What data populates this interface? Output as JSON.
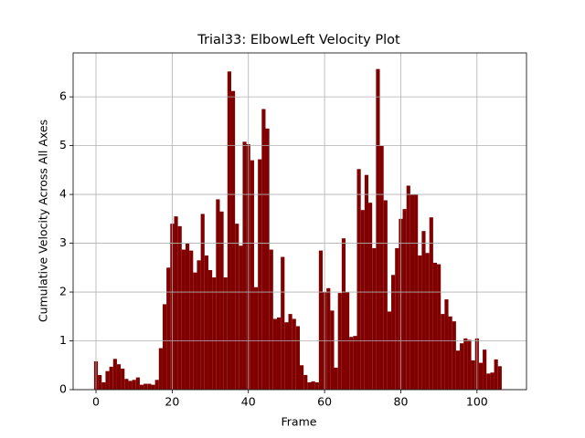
{
  "chart_data": {
    "type": "bar",
    "title": "Trial33: ElbowLeft Velocity Plot",
    "x_label": "Frame",
    "y_label": "Cumulative Velocity Across All Axes",
    "x": [
      0,
      1,
      2,
      3,
      4,
      5,
      6,
      7,
      8,
      9,
      10,
      11,
      12,
      13,
      14,
      15,
      16,
      17,
      18,
      19,
      20,
      21,
      22,
      23,
      24,
      25,
      26,
      27,
      28,
      29,
      30,
      31,
      32,
      33,
      34,
      35,
      36,
      37,
      38,
      39,
      40,
      41,
      42,
      43,
      44,
      45,
      46,
      47,
      48,
      49,
      50,
      51,
      52,
      53,
      54,
      55,
      56,
      57,
      58,
      59,
      60,
      61,
      62,
      63,
      64,
      65,
      66,
      67,
      68,
      69,
      70,
      71,
      72,
      73,
      74,
      75,
      76,
      77,
      78,
      79,
      80,
      81,
      82,
      83,
      84,
      85,
      86,
      87,
      88,
      89,
      90,
      91,
      92,
      93,
      94,
      95,
      96,
      97,
      98,
      99,
      100,
      101,
      102,
      103,
      104,
      105,
      106
    ],
    "values": [
      0.58,
      0.3,
      0.15,
      0.38,
      0.47,
      0.63,
      0.52,
      0.43,
      0.22,
      0.18,
      0.2,
      0.25,
      0.1,
      0.12,
      0.12,
      0.1,
      0.2,
      0.85,
      1.75,
      2.5,
      3.4,
      3.55,
      3.35,
      2.87,
      3.0,
      2.85,
      2.4,
      2.65,
      3.6,
      2.75,
      2.45,
      2.3,
      3.9,
      3.65,
      2.3,
      6.52,
      6.12,
      3.4,
      2.95,
      5.08,
      5.03,
      4.7,
      2.1,
      4.72,
      5.75,
      5.35,
      2.87,
      1.45,
      1.48,
      2.72,
      1.38,
      1.55,
      1.45,
      1.3,
      0.5,
      0.3,
      0.15,
      0.17,
      0.15,
      2.85,
      2.0,
      2.08,
      1.62,
      0.45,
      1.98,
      3.1,
      2.0,
      1.08,
      1.1,
      4.52,
      3.68,
      4.4,
      3.83,
      2.9,
      6.57,
      5.0,
      3.88,
      1.6,
      2.35,
      2.9,
      3.5,
      3.7,
      4.18,
      4.0,
      4.0,
      2.75,
      3.25,
      2.8,
      3.53,
      2.6,
      2.57,
      1.55,
      1.85,
      1.5,
      1.4,
      0.8,
      0.95,
      1.05,
      1.02,
      0.6,
      1.05,
      0.55,
      0.82,
      0.33,
      0.35,
      0.62,
      0.48
    ],
    "color": "#800000",
    "xlim": [
      -6,
      113
    ],
    "xticks": [
      0,
      20,
      40,
      60,
      80,
      100
    ],
    "ylim": [
      0,
      6.9
    ],
    "yticks": [
      0,
      1,
      2,
      3,
      4,
      5,
      6
    ],
    "grid": true
  }
}
